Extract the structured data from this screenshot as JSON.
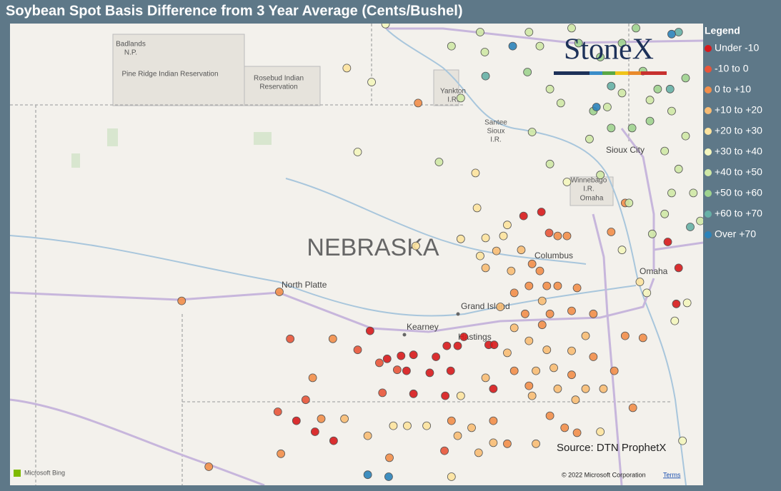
{
  "title": "Soybean Spot Basis Difference from 3 Year Average (Cents/Bushel)",
  "legend": {
    "title": "Legend",
    "items": [
      {
        "label": "Under -10",
        "color": "#d7191c"
      },
      {
        "label": "-10 to 0",
        "color": "#e8553a"
      },
      {
        "label": "0 to +10",
        "color": "#f28e4a"
      },
      {
        "label": "+10 to +20",
        "color": "#f8bc74"
      },
      {
        "label": "+20 to +30",
        "color": "#fde39e"
      },
      {
        "label": "+30 to +40",
        "color": "#f4f6be"
      },
      {
        "label": "+40 to +50",
        "color": "#cfe8a6"
      },
      {
        "label": "+50 to +60",
        "color": "#9fd38f"
      },
      {
        "label": "+60 to +70",
        "color": "#66b0a6"
      },
      {
        "label": "Over +70",
        "color": "#2b83ba"
      }
    ]
  },
  "brand": "StoneX",
  "map_labels": {
    "state": "NEBRASKA",
    "north_platte": "North Platte",
    "grand_island": "Grand Island",
    "kearney": "Kearney",
    "hastings": "Hastings",
    "columbus": "Columbus",
    "omaha": "Omaha",
    "sioux_city": "Sioux City",
    "badlands": [
      "Badlands",
      "N.P."
    ],
    "pine_ridge": "Pine Ridge Indian Reservation",
    "rosebud": [
      "Rosebud Indian",
      "Reservation"
    ],
    "yankton": [
      "Yankton",
      "I.R."
    ],
    "santee": [
      "Santee",
      "Sioux",
      "I.R."
    ],
    "winnebago": [
      "Winnebago",
      "I.R."
    ],
    "omaha_ir": "Omaha"
  },
  "source": "Source: DTN ProphetX",
  "copyright": "© 2022 Microsoft Corporation",
  "terms": "Terms",
  "bing": "Microsoft Bing",
  "points": [
    [
      -99.6,
      40.67,
      0
    ],
    [
      -99.38,
      40.39,
      0
    ],
    [
      -99.2,
      40.42,
      0
    ],
    [
      -99.04,
      40.43,
      0
    ],
    [
      -98.75,
      40.41,
      0
    ],
    [
      -99.13,
      40.27,
      0
    ],
    [
      -98.83,
      40.25,
      0
    ],
    [
      -98.56,
      40.27,
      0
    ],
    [
      -98.61,
      40.52,
      0
    ],
    [
      -98.47,
      40.52,
      0
    ],
    [
      -98.07,
      40.53,
      0
    ],
    [
      -98.0,
      40.53,
      0
    ],
    [
      -98.39,
      40.61,
      0
    ],
    [
      -99.04,
      40.04,
      0
    ],
    [
      -98.63,
      40.02,
      0
    ],
    [
      -98.01,
      40.09,
      0
    ],
    [
      -100.55,
      39.77,
      0
    ],
    [
      -100.31,
      39.66,
      0
    ],
    [
      -100.07,
      39.57,
      0
    ],
    [
      -97.62,
      41.82,
      0
    ],
    [
      -97.39,
      41.86,
      0
    ],
    [
      -95.76,
      41.56,
      0
    ],
    [
      -95.62,
      41.3,
      0
    ],
    [
      -95.65,
      40.94,
      0
    ],
    [
      -100.63,
      40.59,
      1
    ],
    [
      -100.43,
      39.98,
      1
    ],
    [
      -100.79,
      39.86,
      1
    ],
    [
      -97.29,
      41.65,
      1
    ],
    [
      -99.48,
      40.35,
      1
    ],
    [
      -99.25,
      40.28,
      1
    ],
    [
      -99.76,
      40.48,
      1
    ],
    [
      -99.44,
      40.05,
      1
    ],
    [
      -98.64,
      39.47,
      1
    ],
    [
      -102.03,
      40.97,
      2
    ],
    [
      -100.77,
      41.06,
      2
    ],
    [
      -100.08,
      40.59,
      2
    ],
    [
      -100.34,
      40.2,
      2
    ],
    [
      -100.23,
      39.79,
      2
    ],
    [
      -100.75,
      39.44,
      2
    ],
    [
      -101.68,
      39.31,
      2
    ],
    [
      -99.35,
      39.4,
      2
    ],
    [
      -98.98,
      42.95,
      2
    ],
    [
      -96.31,
      41.95,
      2
    ],
    [
      -97.18,
      41.62,
      2
    ],
    [
      -97.06,
      41.62,
      2
    ],
    [
      -97.51,
      41.34,
      2
    ],
    [
      -97.41,
      41.27,
      2
    ],
    [
      -97.55,
      41.12,
      2
    ],
    [
      -97.32,
      41.12,
      2
    ],
    [
      -97.18,
      41.12,
      2
    ],
    [
      -96.93,
      41.1,
      2
    ],
    [
      -97.74,
      41.05,
      2
    ],
    [
      -97.6,
      40.84,
      2
    ],
    [
      -97.28,
      40.84,
      2
    ],
    [
      -97.0,
      40.87,
      2
    ],
    [
      -96.72,
      40.84,
      2
    ],
    [
      -96.31,
      40.62,
      2
    ],
    [
      -96.08,
      40.6,
      2
    ],
    [
      -97.38,
      40.73,
      2
    ],
    [
      -96.72,
      40.41,
      2
    ],
    [
      -96.45,
      40.27,
      2
    ],
    [
      -97.0,
      40.23,
      2
    ],
    [
      -97.74,
      40.27,
      2
    ],
    [
      -97.55,
      40.12,
      2
    ],
    [
      -97.09,
      39.7,
      2
    ],
    [
      -96.93,
      39.65,
      2
    ],
    [
      -98.01,
      39.77,
      2
    ],
    [
      -98.55,
      39.77,
      2
    ],
    [
      -97.83,
      39.54,
      2
    ],
    [
      -97.28,
      39.82,
      2
    ],
    [
      -96.21,
      39.9,
      2
    ],
    [
      -96.49,
      41.66,
      2
    ],
    [
      -98.11,
      41.3,
      3
    ],
    [
      -97.97,
      41.47,
      3
    ],
    [
      -97.78,
      41.27,
      3
    ],
    [
      -97.65,
      41.48,
      3
    ],
    [
      -97.38,
      40.97,
      3
    ],
    [
      -97.92,
      40.91,
      3
    ],
    [
      -97.74,
      40.7,
      3
    ],
    [
      -97.55,
      40.57,
      3
    ],
    [
      -97.32,
      40.48,
      3
    ],
    [
      -97.83,
      40.45,
      3
    ],
    [
      -97.46,
      40.27,
      3
    ],
    [
      -97.23,
      40.3,
      3
    ],
    [
      -97.0,
      40.47,
      3
    ],
    [
      -96.82,
      40.62,
      3
    ],
    [
      -97.18,
      40.09,
      3
    ],
    [
      -96.95,
      39.98,
      3
    ],
    [
      -97.51,
      40.02,
      3
    ],
    [
      -96.82,
      40.09,
      3
    ],
    [
      -96.59,
      40.09,
      3
    ],
    [
      -98.11,
      40.2,
      3
    ],
    [
      -98.29,
      39.7,
      3
    ],
    [
      -98.47,
      39.62,
      3
    ],
    [
      -99.63,
      39.62,
      3
    ],
    [
      -99.93,
      39.79,
      3
    ],
    [
      -98.01,
      39.55,
      3
    ],
    [
      -97.46,
      39.54,
      3
    ],
    [
      -98.2,
      39.45,
      3
    ],
    [
      -99.9,
      43.3,
      4
    ],
    [
      -98.24,
      42.25,
      4
    ],
    [
      -98.22,
      41.9,
      4
    ],
    [
      -97.83,
      41.73,
      4
    ],
    [
      -98.11,
      41.6,
      4
    ],
    [
      -97.88,
      41.62,
      4
    ],
    [
      -98.43,
      41.59,
      4
    ],
    [
      -98.18,
      41.42,
      4
    ],
    [
      -99.01,
      41.52,
      4
    ],
    [
      -99.3,
      39.72,
      4
    ],
    [
      -99.12,
      39.72,
      4
    ],
    [
      -98.87,
      39.72,
      4
    ],
    [
      -98.43,
      40.02,
      4
    ],
    [
      -98.55,
      39.21,
      4
    ],
    [
      -96.63,
      39.66,
      4
    ],
    [
      -96.12,
      41.16,
      4
    ],
    [
      -99.58,
      43.16,
      5
    ],
    [
      -99.76,
      42.46,
      5
    ],
    [
      -99.4,
      43.74,
      5
    ],
    [
      -97.06,
      42.16,
      5
    ],
    [
      -96.35,
      41.48,
      5
    ],
    [
      -96.03,
      41.05,
      5
    ],
    [
      -95.51,
      40.95,
      5
    ],
    [
      -95.67,
      40.77,
      5
    ],
    [
      -95.57,
      39.57,
      5
    ],
    [
      -98.55,
      43.52,
      6
    ],
    [
      -98.12,
      43.46,
      6
    ],
    [
      -98.18,
      43.66,
      6
    ],
    [
      -98.43,
      43.0,
      6
    ],
    [
      -98.71,
      42.36,
      6
    ],
    [
      -97.51,
      42.66,
      6
    ],
    [
      -97.28,
      42.34,
      6
    ],
    [
      -96.63,
      42.23,
      6
    ],
    [
      -96.26,
      41.95,
      6
    ],
    [
      -95.96,
      41.64,
      6
    ],
    [
      -95.8,
      41.84,
      6
    ],
    [
      -95.71,
      42.05,
      6
    ],
    [
      -95.43,
      42.05,
      6
    ],
    [
      -95.62,
      42.29,
      6
    ],
    [
      -95.8,
      42.47,
      6
    ],
    [
      -95.53,
      42.62,
      6
    ],
    [
      -95.71,
      42.87,
      6
    ],
    [
      -95.99,
      42.98,
      6
    ],
    [
      -96.35,
      43.05,
      6
    ],
    [
      -96.54,
      42.91,
      6
    ],
    [
      -96.77,
      42.59,
      6
    ],
    [
      -97.14,
      42.95,
      6
    ],
    [
      -97.28,
      43.09,
      6
    ],
    [
      -97.41,
      43.52,
      6
    ],
    [
      -97.55,
      43.66,
      6
    ],
    [
      -97.0,
      43.7,
      6
    ],
    [
      -95.34,
      41.77,
      6
    ],
    [
      -97.57,
      43.26,
      7
    ],
    [
      -96.91,
      43.55,
      7
    ],
    [
      -96.63,
      43.41,
      7
    ],
    [
      -96.35,
      43.55,
      7
    ],
    [
      -96.17,
      43.7,
      7
    ],
    [
      -96.08,
      43.27,
      7
    ],
    [
      -95.89,
      43.09,
      7
    ],
    [
      -96.22,
      42.7,
      7
    ],
    [
      -95.99,
      42.77,
      7
    ],
    [
      -96.49,
      42.7,
      7
    ],
    [
      -96.72,
      42.87,
      7
    ],
    [
      -95.53,
      43.2,
      7
    ],
    [
      -98.11,
      43.22,
      8
    ],
    [
      -96.49,
      43.12,
      8
    ],
    [
      -95.73,
      43.09,
      8
    ],
    [
      -95.62,
      43.66,
      8
    ],
    [
      -95.47,
      41.71,
      8
    ],
    [
      -97.76,
      43.52,
      9
    ],
    [
      -96.68,
      42.91,
      9
    ],
    [
      -95.71,
      43.64,
      9
    ],
    [
      -99.63,
      39.23,
      9
    ],
    [
      -99.36,
      39.21,
      9
    ]
  ]
}
